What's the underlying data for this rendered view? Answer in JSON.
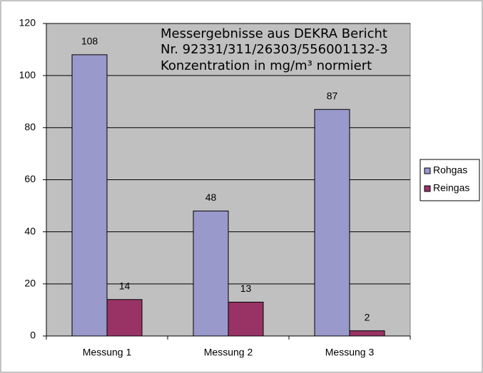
{
  "chart_data": {
    "type": "bar",
    "title": [
      "Messergebnisse aus DEKRA Bericht",
      "Nr. 92331/311/26303/556001132-3",
      "Konzentration in mg/m³ normiert"
    ],
    "categories": [
      "Messung 1",
      "Messung 2",
      "Messung 3"
    ],
    "series": [
      {
        "name": "Rohgas",
        "color": "#9999cc",
        "values": [
          108,
          48,
          87
        ]
      },
      {
        "name": "Reingas",
        "color": "#993366",
        "values": [
          14,
          13,
          2
        ]
      }
    ],
    "ylim": [
      0,
      120
    ],
    "yticks": [
      0,
      20,
      40,
      60,
      80,
      100,
      120
    ],
    "grid": true,
    "legend": "right"
  }
}
